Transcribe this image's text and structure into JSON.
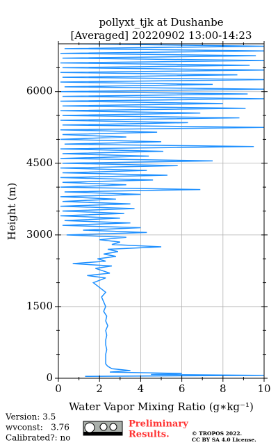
{
  "chart_data": {
    "type": "profile",
    "title": "pollyxt_tjk at Dushanbe",
    "subtitle": "[Averaged] 20220902 13:00-14:23",
    "xlabel": "Water Vapor Mixing Ratio (g∗kg⁻¹)",
    "ylabel": "Height (m)",
    "color": "#1e90ff",
    "grid": true,
    "xlim": [
      0,
      10
    ],
    "xticks": [
      0,
      2,
      4,
      6,
      8,
      10
    ],
    "xminorticks": [
      1,
      3,
      5,
      7,
      9
    ],
    "ylim": [
      0,
      7000
    ],
    "yticks": [
      0,
      1500,
      3000,
      4500,
      6000
    ],
    "yminorticks": [
      500,
      1000,
      2000,
      2500,
      3500,
      4000,
      5000,
      5500,
      6500
    ],
    "heights": [
      40,
      60,
      80,
      100,
      130,
      160,
      200,
      250,
      300,
      400,
      500,
      600,
      700,
      800,
      900,
      1000,
      1100,
      1200,
      1300,
      1400,
      1500,
      1600,
      1700,
      1800,
      1900,
      2000,
      2100,
      2150,
      2200,
      2300,
      2350,
      2400,
      2450,
      2500,
      2550,
      2600,
      2650,
      2700,
      2750,
      2800,
      2850,
      2900,
      2950,
      3000,
      3050,
      3100,
      3150,
      3200,
      3250,
      3300,
      3350,
      3400,
      3450,
      3500,
      3550,
      3600,
      3650,
      3700,
      3750,
      3800,
      3850,
      3900,
      3950,
      4000,
      4050,
      4100,
      4150,
      4200,
      4250,
      4300,
      4350,
      4400,
      4450,
      4500,
      4550,
      4600,
      4650,
      4700,
      4750,
      4800,
      4850,
      4900,
      4950,
      5000,
      5050,
      5100,
      5150,
      5200,
      5250,
      5300,
      5350,
      5400,
      5450,
      5500,
      5550,
      5600,
      5650,
      5700,
      5750,
      5800,
      5850,
      5900,
      5950,
      6000,
      6050,
      6100,
      6150,
      6200,
      6250,
      6300,
      6350,
      6400,
      6450,
      6500,
      6550,
      6600,
      6650,
      6700,
      6750,
      6800,
      6850,
      6900,
      6950,
      7000
    ],
    "values": [
      1.3,
      10,
      4.5,
      6,
      2.5,
      3.5,
      2.6,
      2.4,
      2.3,
      2.3,
      2.3,
      2.35,
      2.3,
      2.3,
      2.35,
      2.3,
      2.4,
      2.3,
      2.35,
      2.2,
      2.3,
      2.2,
      2.1,
      2.3,
      2.0,
      1.7,
      2.3,
      1.4,
      2.5,
      1.8,
      2.6,
      0.7,
      2.3,
      1.9,
      2.8,
      2.2,
      2.9,
      2.4,
      5.0,
      2.6,
      3.0,
      2.0,
      3.3,
      0.4,
      4.3,
      1.2,
      4.0,
      0.2,
      3.5,
      0.3,
      3.0,
      0.1,
      3.2,
      0.2,
      3.7,
      0.1,
      3.5,
      0.2,
      2.8,
      0.1,
      4.0,
      0.3,
      6.9,
      0.1,
      3.3,
      0.2,
      4.6,
      0.1,
      5.3,
      0.2,
      4.3,
      0.1,
      5.8,
      0.2,
      7.5,
      0.1,
      4.4,
      0.2,
      5.1,
      0.1,
      9.5,
      0.3,
      5.0,
      0.1,
      3.3,
      0.2,
      4.8,
      0.1,
      10,
      0.2,
      6.3,
      0.1,
      8.8,
      0.2,
      6.9,
      0.1,
      9.1,
      0.2,
      8.0,
      0.1,
      10,
      0.2,
      9.2,
      0.1,
      10,
      0.3,
      7.5,
      0.1,
      10,
      0.2,
      8.7,
      0.1,
      10,
      0.2,
      9.3,
      0.1,
      10,
      0.2,
      9.6,
      0.1,
      10,
      0.3,
      10,
      1.0
    ]
  },
  "footer": {
    "version": "Version: 3.5",
    "wvconst": "wvconst:   3.76",
    "calibrated": "Calibrated?: no",
    "preliminary_1": "Preliminary",
    "preliminary_2": "Results.",
    "copyright_1": "© TROPOS 2022.",
    "copyright_2": "CC BY SA 4.0 License."
  }
}
